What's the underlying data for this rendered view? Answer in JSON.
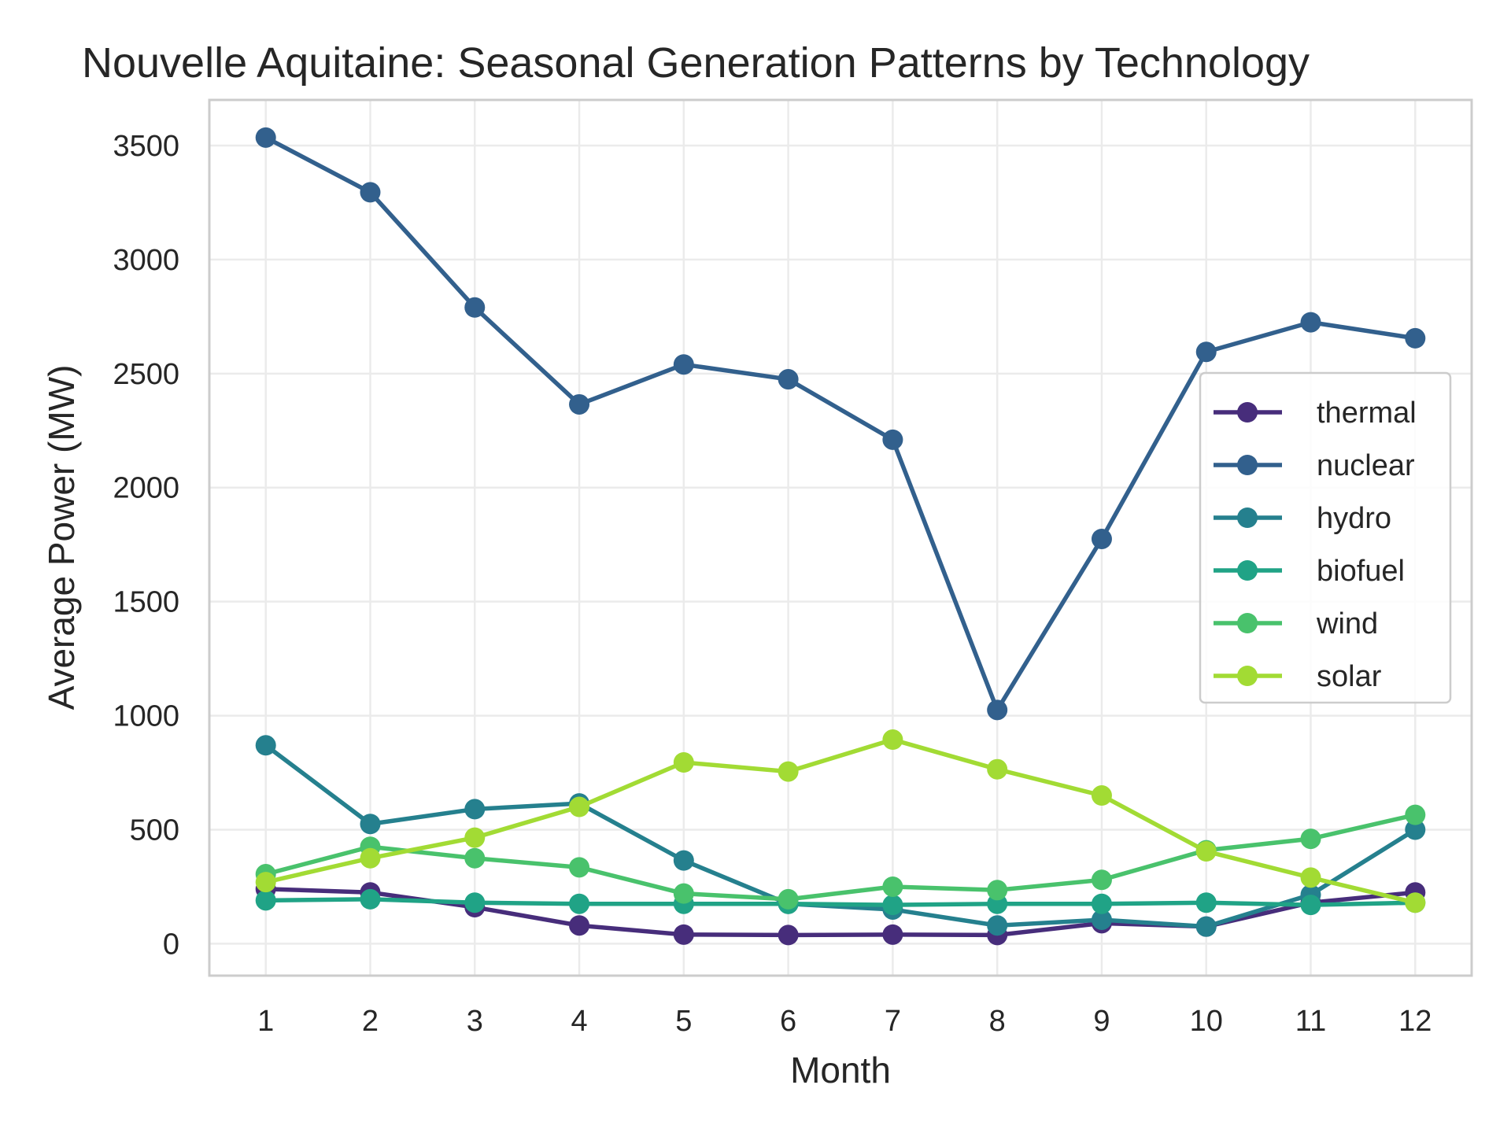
{
  "chart_data": {
    "type": "line",
    "title": "Nouvelle Aquitaine: Seasonal Generation Patterns by Technology",
    "xlabel": "Month",
    "ylabel": "Average Power (MW)",
    "x": [
      1,
      2,
      3,
      4,
      5,
      6,
      7,
      8,
      9,
      10,
      11,
      12
    ],
    "xlim": [
      0.46,
      12.54
    ],
    "ylim": [
      -140,
      3700
    ],
    "yticks": [
      0,
      500,
      1000,
      1500,
      2000,
      2500,
      3000,
      3500
    ],
    "grid": true,
    "legend": "right",
    "series": [
      {
        "name": "thermal",
        "color": "#472d7b",
        "values": [
          240,
          225,
          160,
          80,
          40,
          38,
          40,
          38,
          90,
          75,
          180,
          225
        ]
      },
      {
        "name": "nuclear",
        "color": "#32608d",
        "values": [
          3535,
          3295,
          2790,
          2365,
          2540,
          2475,
          2210,
          1025,
          1775,
          2595,
          2725,
          2655
        ]
      },
      {
        "name": "hydro",
        "color": "#25808e",
        "values": [
          870,
          525,
          590,
          615,
          365,
          175,
          150,
          80,
          105,
          75,
          215,
          500
        ]
      },
      {
        "name": "biofuel",
        "color": "#20a386",
        "values": [
          190,
          195,
          180,
          175,
          175,
          175,
          170,
          175,
          175,
          180,
          170,
          180
        ]
      },
      {
        "name": "wind",
        "color": "#49c26c",
        "values": [
          305,
          425,
          375,
          335,
          220,
          195,
          250,
          235,
          280,
          410,
          460,
          565
        ]
      },
      {
        "name": "solar",
        "color": "#a2db34",
        "values": [
          270,
          375,
          465,
          600,
          795,
          755,
          895,
          765,
          650,
          405,
          290,
          180
        ]
      }
    ]
  }
}
